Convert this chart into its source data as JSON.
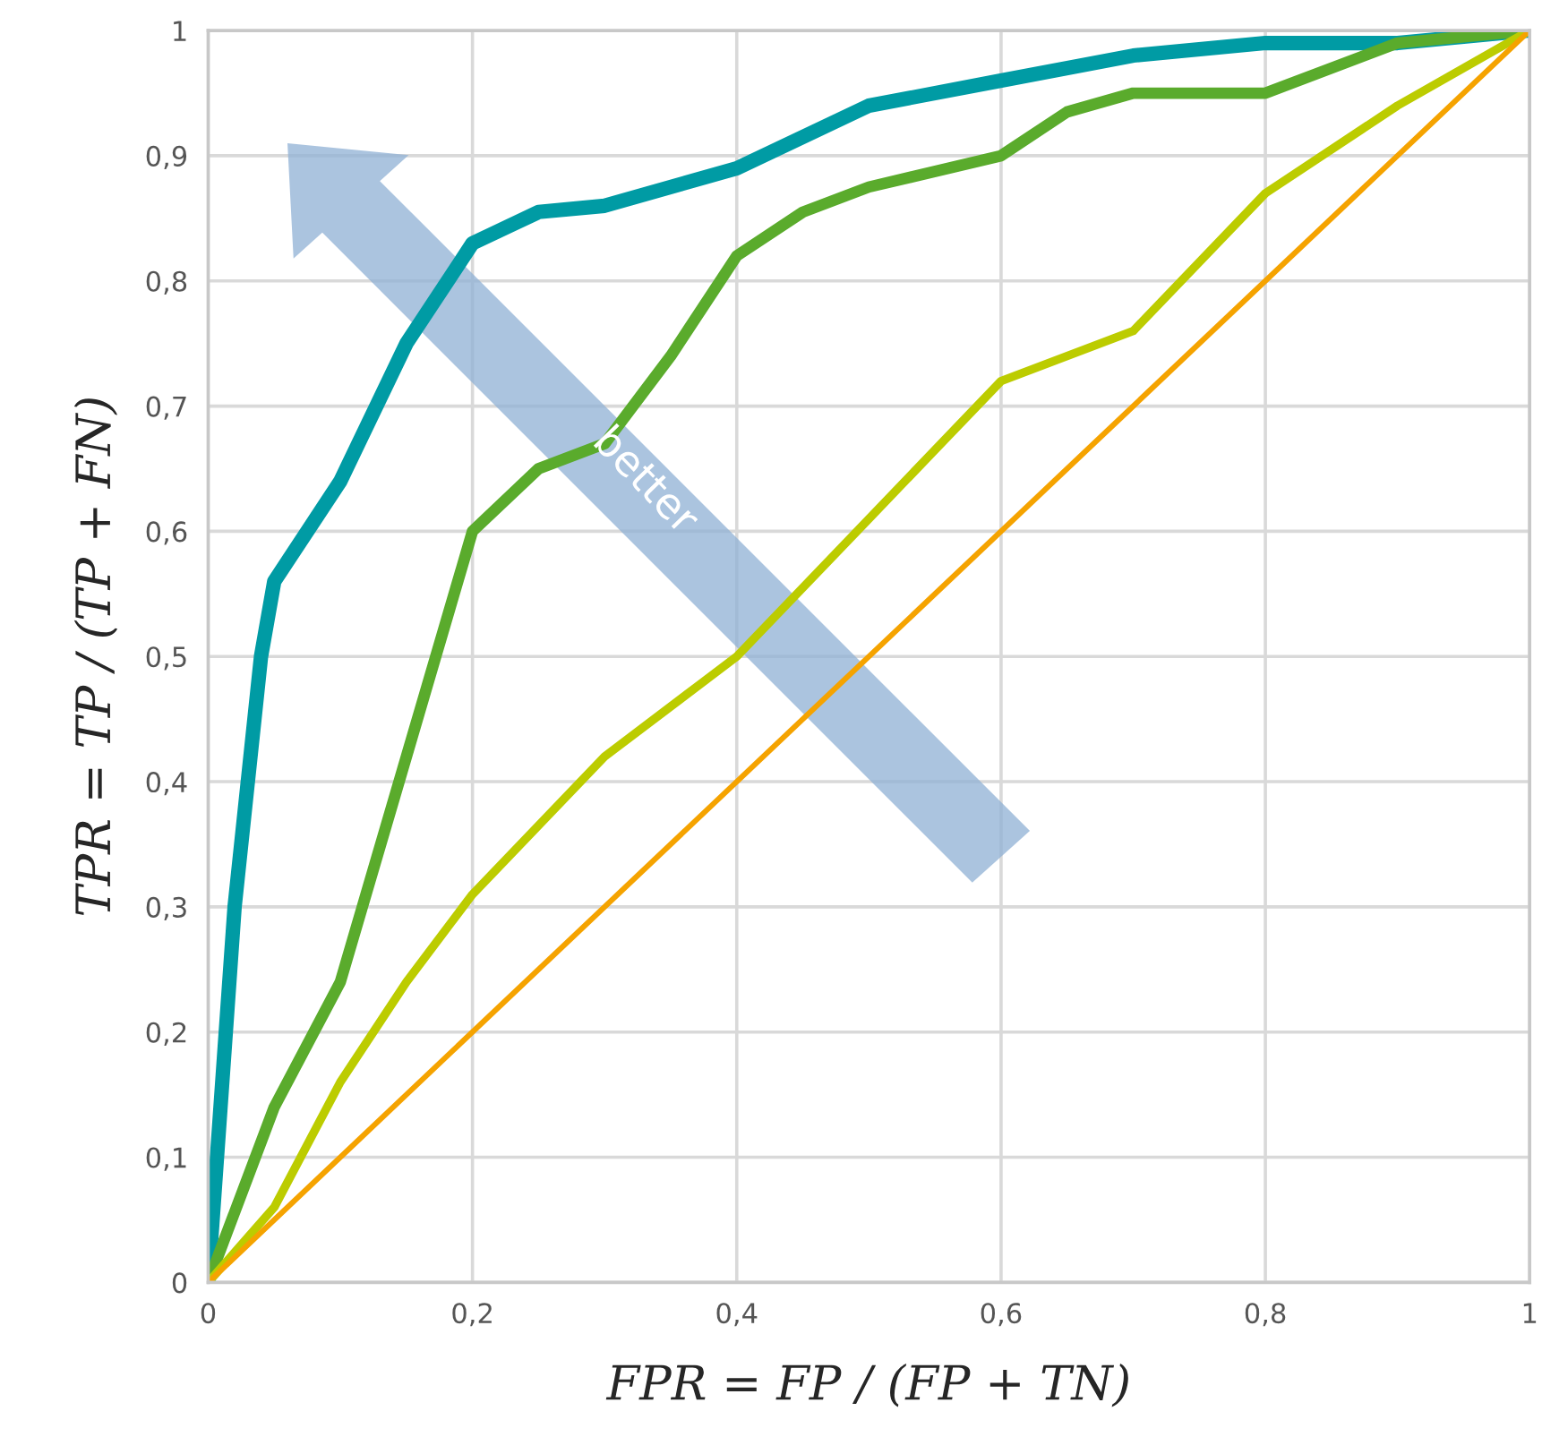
{
  "chart_data": {
    "type": "line",
    "xlabel": "FPR = FP / (FP + TN)",
    "ylabel": "TPR = TP / (TP + FN)",
    "annotations": [
      "better"
    ],
    "series": [
      {
        "color": "#009ba4",
        "x": [
          0,
          0.02,
          0.04,
          0.05,
          0.1,
          0.15,
          0.2,
          0.25,
          0.3,
          0.4,
          0.5,
          0.6,
          0.7,
          0.8,
          0.9,
          1
        ],
        "values": [
          0,
          0.3,
          0.5,
          0.56,
          0.64,
          0.75,
          0.83,
          0.855,
          0.86,
          0.89,
          0.94,
          0.96,
          0.98,
          0.99,
          0.99,
          1
        ]
      },
      {
        "color": "#5aab2c",
        "x": [
          0,
          0.05,
          0.1,
          0.15,
          0.2,
          0.25,
          0.3,
          0.35,
          0.4,
          0.45,
          0.5,
          0.6,
          0.65,
          0.7,
          0.8,
          0.9,
          1
        ],
        "values": [
          0,
          0.14,
          0.24,
          0.42,
          0.6,
          0.65,
          0.67,
          0.74,
          0.82,
          0.855,
          0.875,
          0.9,
          0.935,
          0.95,
          0.95,
          0.99,
          1
        ]
      },
      {
        "color": "#bccc00",
        "x": [
          0,
          0.05,
          0.1,
          0.15,
          0.2,
          0.3,
          0.4,
          0.5,
          0.6,
          0.7,
          0.8,
          0.9,
          1
        ],
        "values": [
          0,
          0.06,
          0.16,
          0.24,
          0.31,
          0.42,
          0.5,
          0.61,
          0.72,
          0.76,
          0.87,
          0.94,
          1
        ]
      },
      {
        "color": "#f5a300",
        "x": [
          0,
          1
        ],
        "values": [
          0,
          1
        ]
      }
    ],
    "xlim": [
      0,
      1
    ],
    "ylim": [
      0,
      1
    ],
    "xticks": [
      0,
      {
        "value": 0.2,
        "label": "0,2"
      },
      {
        "value": 0.4,
        "label": "0,4"
      },
      {
        "value": 0.6,
        "label": "0,6"
      },
      {
        "value": 0.8,
        "label": "0,8"
      },
      1
    ],
    "yticks": [
      0,
      {
        "value": 0.1,
        "label": "0,1"
      },
      {
        "value": 0.2,
        "label": "0,2"
      },
      {
        "value": 0.3,
        "label": "0,3"
      },
      {
        "value": 0.4,
        "label": "0,4"
      },
      {
        "value": 0.5,
        "label": "0,5"
      },
      {
        "value": 0.6,
        "label": "0,6"
      },
      {
        "value": 0.7,
        "label": "0,7"
      },
      {
        "value": 0.8,
        "label": "0,8"
      },
      {
        "value": 0.9,
        "label": "0,9"
      },
      1
    ],
    "grid": true,
    "legend": false
  }
}
